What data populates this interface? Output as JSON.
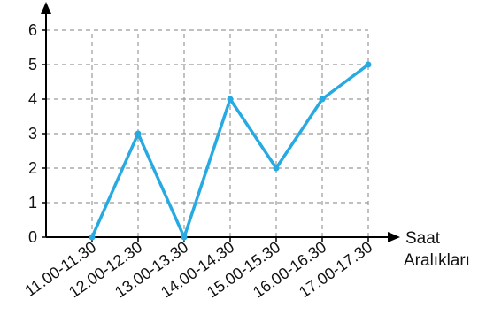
{
  "chart_data": {
    "type": "line",
    "categories": [
      "11.00-11.30",
      "12.00-12.30",
      "13.00-13.30",
      "14.00-14.30",
      "15.00-15.30",
      "16.00-16.30",
      "17.00-17.30"
    ],
    "values": [
      0,
      3,
      0,
      4,
      2,
      4,
      5
    ],
    "xlabel": "Saat Aralıkları",
    "xlabel_lines": [
      "Saat",
      "Aralıkları"
    ],
    "ylabel": "",
    "ylim": [
      0,
      6
    ],
    "yticks": [
      0,
      1,
      2,
      3,
      4,
      5,
      6
    ],
    "grid": true,
    "colors": {
      "line": "#27aae1",
      "grid": "#9a9a9a",
      "axis": "#000000"
    }
  }
}
